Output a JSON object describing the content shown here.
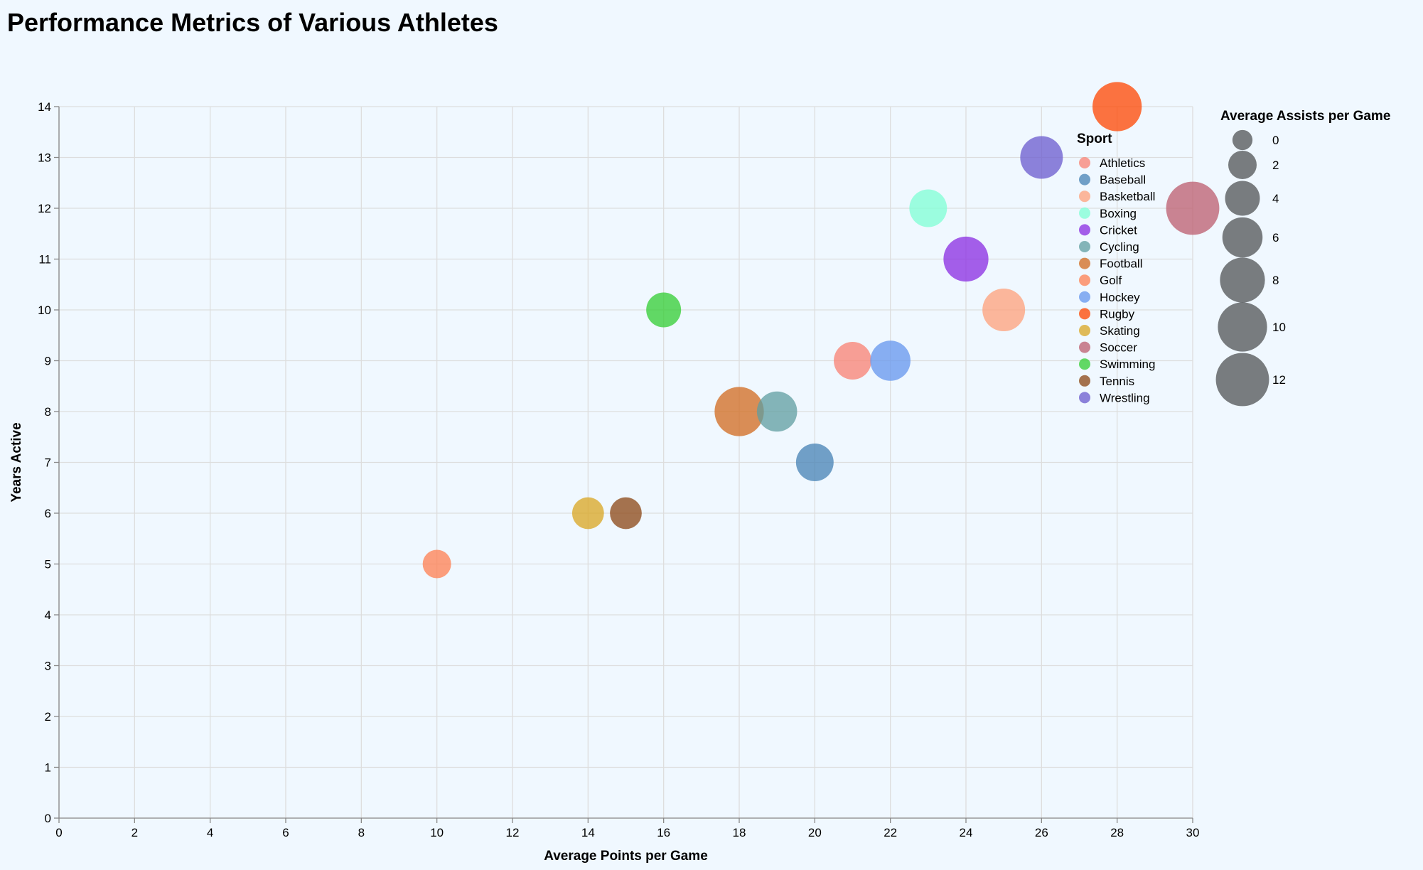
{
  "chart_data": {
    "type": "scatter",
    "title": "Performance Metrics of Various Athletes",
    "xlabel": "Average Points per Game",
    "ylabel": "Years Active",
    "xlim": [
      0,
      30
    ],
    "ylim": [
      0,
      14
    ],
    "x_ticks": [
      0,
      2,
      4,
      6,
      8,
      10,
      12,
      14,
      16,
      18,
      20,
      22,
      24,
      26,
      28,
      30
    ],
    "y_ticks": [
      0,
      1,
      2,
      3,
      4,
      5,
      6,
      7,
      8,
      9,
      10,
      11,
      12,
      13,
      14
    ],
    "grid": true,
    "color_legend": {
      "title": "Sport",
      "position": "right",
      "items": [
        {
          "label": "Athletics",
          "color": "#fa8072"
        },
        {
          "label": "Baseball",
          "color": "#4682b4"
        },
        {
          "label": "Basketball",
          "color": "#ffa07a"
        },
        {
          "label": "Boxing",
          "color": "#7fffd4"
        },
        {
          "label": "Cricket",
          "color": "#8a2be2"
        },
        {
          "label": "Cycling",
          "color": "#5f9ea0"
        },
        {
          "label": "Football",
          "color": "#d2691e"
        },
        {
          "label": "Golf",
          "color": "#ff7f50"
        },
        {
          "label": "Hockey",
          "color": "#6495ed"
        },
        {
          "label": "Rugby",
          "color": "#ff4500"
        },
        {
          "label": "Skating",
          "color": "#daa520"
        },
        {
          "label": "Soccer",
          "color": "#bc5c6d"
        },
        {
          "label": "Swimming",
          "color": "#32cd32"
        },
        {
          "label": "Tennis",
          "color": "#8b4513"
        },
        {
          "label": "Wrestling",
          "color": "#6a5acd"
        }
      ]
    },
    "size_legend": {
      "title": "Average Assists per Game",
      "position": "top-right",
      "values": [
        0,
        2,
        4,
        6,
        8,
        10,
        12
      ]
    },
    "points": [
      {
        "sport": "Golf",
        "x": 10,
        "y": 5,
        "size": 2
      },
      {
        "sport": "Skating",
        "x": 14,
        "y": 6,
        "size": 3
      },
      {
        "sport": "Tennis",
        "x": 15,
        "y": 6,
        "size": 3
      },
      {
        "sport": "Swimming",
        "x": 16,
        "y": 10,
        "size": 4
      },
      {
        "sport": "Football",
        "x": 18,
        "y": 8,
        "size": 10
      },
      {
        "sport": "Cycling",
        "x": 19,
        "y": 8,
        "size": 6
      },
      {
        "sport": "Baseball",
        "x": 20,
        "y": 7,
        "size": 5
      },
      {
        "sport": "Athletics",
        "x": 21,
        "y": 9,
        "size": 5
      },
      {
        "sport": "Hockey",
        "x": 22,
        "y": 9,
        "size": 6
      },
      {
        "sport": "Boxing",
        "x": 23,
        "y": 12,
        "size": 5
      },
      {
        "sport": "Cricket",
        "x": 24,
        "y": 11,
        "size": 8
      },
      {
        "sport": "Basketball",
        "x": 25,
        "y": 10,
        "size": 7
      },
      {
        "sport": "Wrestling",
        "x": 26,
        "y": 13,
        "size": 7
      },
      {
        "sport": "Rugby",
        "x": 28,
        "y": 14,
        "size": 10
      },
      {
        "sport": "Soccer",
        "x": 30,
        "y": 12,
        "size": 12
      }
    ]
  }
}
